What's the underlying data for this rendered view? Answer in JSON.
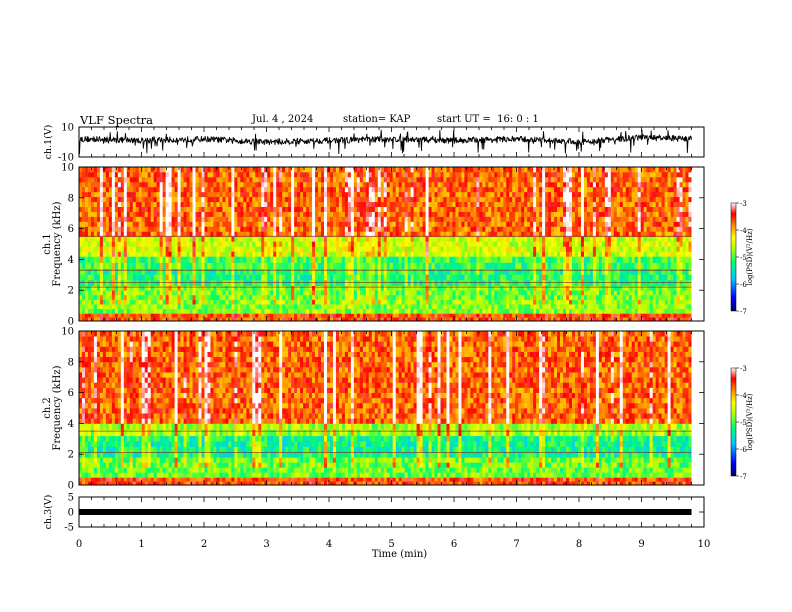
{
  "header": {
    "title": "VLF Spectra",
    "date": "Jul. 4 , 2024",
    "station": "station= KAP",
    "start": "start UT =  16: 0 : 1"
  },
  "chart_data": [
    {
      "type": "line",
      "panel": "ch1-waveform",
      "ylabel": "ch.1(V)",
      "ylim": [
        -10,
        10
      ],
      "yticks": [
        "10",
        "-10"
      ],
      "xlim": [
        0,
        10
      ],
      "line_color": "#000000",
      "trace": {
        "baseline_v": 2,
        "range_v": [
          -8,
          8
        ],
        "x": [
          0,
          1,
          2,
          3,
          4,
          5,
          6,
          7,
          8,
          9,
          9.8
        ],
        "y": [
          2,
          1,
          2,
          0,
          1,
          2,
          1,
          2,
          0,
          3,
          2
        ]
      }
    },
    {
      "type": "heatmap",
      "panel": "ch1-spectrogram",
      "ylabel": "ch.1",
      "ylabel2": "Frequency (kHz)",
      "ylim": [
        0,
        10
      ],
      "yticks": [
        "0",
        "2",
        "4",
        "6",
        "8",
        "10"
      ],
      "xlim": [
        0,
        10
      ],
      "data_xmax": 9.8,
      "bands": [
        {
          "f_from": 0,
          "f_to": 0.5,
          "level": -3.6
        },
        {
          "f_from": 0.5,
          "f_to": 1.4,
          "level": -4.8
        },
        {
          "f_from": 1.4,
          "f_to": 2.3,
          "level": -4.9
        },
        {
          "f_from": 2.3,
          "f_to": 3.4,
          "level": -5.2
        },
        {
          "f_from": 3.4,
          "f_to": 4.2,
          "level": -5.1
        },
        {
          "f_from": 4.2,
          "f_to": 5.5,
          "level": -4.5
        },
        {
          "f_from": 5.5,
          "f_to": 10,
          "level": -3.7
        }
      ],
      "lines_khz": [
        2.2,
        2.5,
        3.3,
        5.5
      ],
      "colorbar": {
        "label": "log(PSD)(V²/Hz)",
        "min": -7,
        "max": -3,
        "ticks": [
          "-3",
          "-4",
          "-5",
          "-6",
          "-7"
        ]
      }
    },
    {
      "type": "heatmap",
      "panel": "ch2-spectrogram",
      "ylabel": "ch.2",
      "ylabel2": "Frequency (kHz)",
      "ylim": [
        0,
        10
      ],
      "yticks": [
        "0",
        "2",
        "4",
        "6",
        "8",
        "10"
      ],
      "xlim": [
        0,
        10
      ],
      "data_xmax": 9.8,
      "bands": [
        {
          "f_from": 0,
          "f_to": 0.5,
          "level": -3.6
        },
        {
          "f_from": 0.5,
          "f_to": 1.8,
          "level": -4.9
        },
        {
          "f_from": 1.8,
          "f_to": 3.2,
          "level": -5.3
        },
        {
          "f_from": 3.2,
          "f_to": 4.0,
          "level": -4.7
        },
        {
          "f_from": 4.0,
          "f_to": 10,
          "level": -3.7
        }
      ],
      "lines_khz": [
        2.1,
        3.5
      ],
      "colorbar": {
        "label": "log(PSD)(V²/Hz)",
        "min": -7,
        "max": -3,
        "ticks": [
          "-3",
          "-4",
          "-5",
          "-6",
          "-7"
        ]
      }
    },
    {
      "type": "line",
      "panel": "ch3-waveform",
      "ylabel": "ch.3(V)",
      "ylim": [
        -5,
        5
      ],
      "yticks": [
        "5",
        "0",
        "-5"
      ],
      "xlim": [
        0,
        10
      ],
      "xticks": [
        "0",
        "1",
        "2",
        "3",
        "4",
        "5",
        "6",
        "7",
        "8",
        "9",
        "10"
      ],
      "xlabel": "Time (min)",
      "trace": {
        "x": [
          0,
          9.8
        ],
        "y": [
          0,
          0
        ]
      }
    }
  ]
}
